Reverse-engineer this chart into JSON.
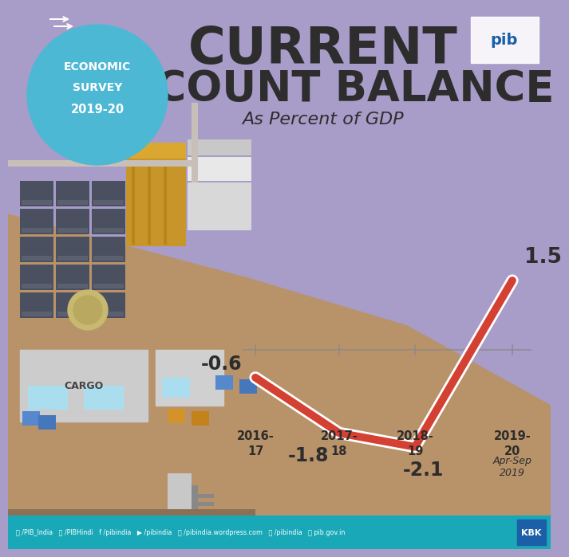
{
  "title_line1": "CURRENT",
  "title_line2": "ACCOUNT BALANCE",
  "subtitle": "As Percent of GDP",
  "badge_line1": "ECONOMIC",
  "badge_line2": "SURVEY",
  "badge_line3": "2019-20",
  "values": [
    -0.6,
    -1.8,
    -2.1,
    1.5
  ],
  "value_labels": [
    "-0.6",
    "-1.8",
    "-2.1",
    "1.5"
  ],
  "year_labels": [
    "2016-\n17",
    "2017-\n18",
    "2018-\n19",
    "2019-\n20"
  ],
  "last_year_sub": "Apr-Sep\n2019",
  "bg_purple": "#a89cc8",
  "bg_tan": "#b8936a",
  "line_color": "#d44032",
  "line_outline_color": "#ffffff",
  "axis_color": "#888888",
  "text_color": "#2d2d2d",
  "footer_bg": "#19a8b8",
  "footer_kbk_bg": "#1a5fa8",
  "badge_bg": "#4db8d4",
  "badge_border": "#ffffff",
  "white": "#ffffff"
}
